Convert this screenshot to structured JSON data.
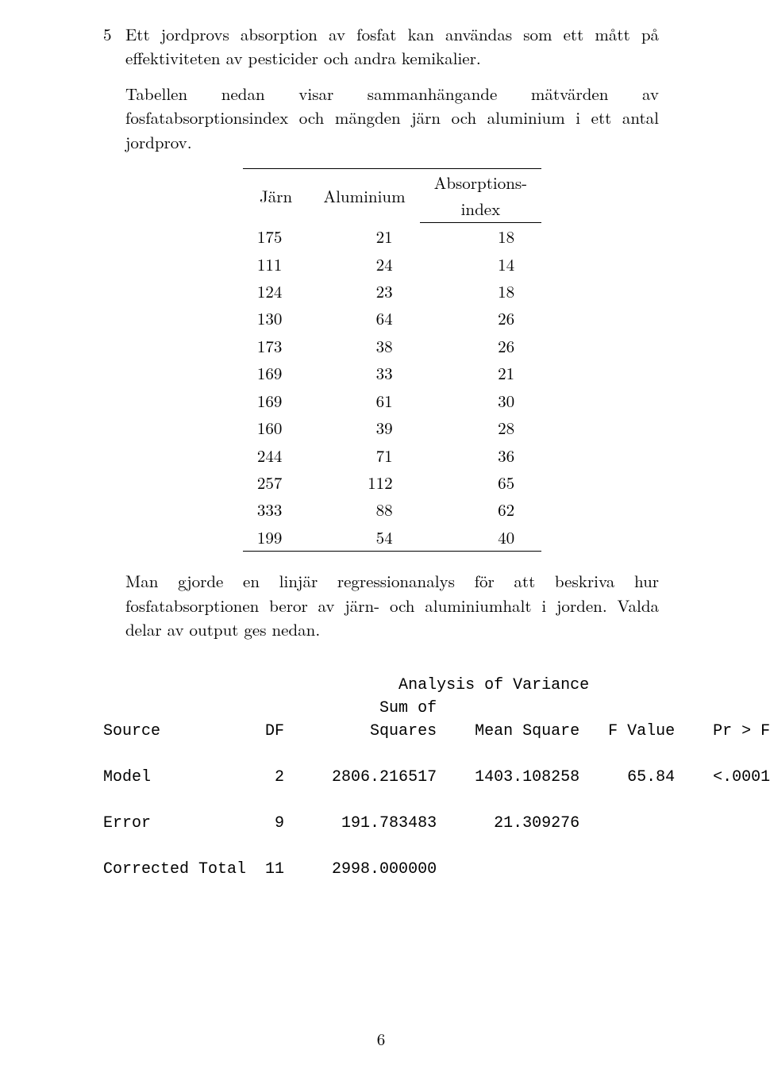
{
  "problem_number": "5",
  "para1": "Ett jordprovs absorption av fosfat kan användas som ett mått på effektiviteten av pesticider och andra kemikalier.",
  "para2": "Tabellen nedan visar sammanhängande mätvärden av fosfatabsorptionsindex och mängden järn och aluminium i ett antal jordprov.",
  "data_table": {
    "columns": [
      "Järn",
      "Aluminium",
      "Absorptions-",
      "index"
    ],
    "header_col1": "Järn",
    "header_col2": "Aluminium",
    "header_col3_line1": "Absorptions-",
    "header_col3_line2": "index",
    "rows": [
      [
        "175",
        "21",
        "18"
      ],
      [
        "111",
        "24",
        "14"
      ],
      [
        "124",
        "23",
        "18"
      ],
      [
        "130",
        "64",
        "26"
      ],
      [
        "173",
        "38",
        "26"
      ],
      [
        "169",
        "33",
        "21"
      ],
      [
        "169",
        "61",
        "30"
      ],
      [
        "160",
        "39",
        "28"
      ],
      [
        "244",
        "71",
        "36"
      ],
      [
        "257",
        "112",
        "65"
      ],
      [
        "333",
        "88",
        "62"
      ],
      [
        "199",
        "54",
        "40"
      ]
    ],
    "font_size_pt": 16,
    "border_color": "#000000",
    "text_align": "right"
  },
  "para3": "Man gjorde en linjär regressionanalys för att beskriva hur fosfatabsorptionen beror av järn- och aluminiumhalt i jorden. Valda delar av output ges nedan.",
  "anova": {
    "title": "Analysis of Variance",
    "header_line2": "Sum of",
    "columns": [
      "Source",
      "DF",
      "Squares",
      "Mean Square",
      "F Value",
      "Pr > F"
    ],
    "rows": [
      {
        "source": "Model",
        "df": "2",
        "ss": "2806.216517",
        "ms": "1403.108258",
        "f": "65.84",
        "p": "<.0001"
      },
      {
        "source": "Error",
        "df": "9",
        "ss": "191.783483",
        "ms": "21.309276",
        "f": "",
        "p": ""
      },
      {
        "source": "Corrected Total",
        "df": "11",
        "ss": "2998.000000",
        "ms": "",
        "f": "",
        "p": ""
      }
    ],
    "font_family": "monospace"
  },
  "page_number": "6"
}
